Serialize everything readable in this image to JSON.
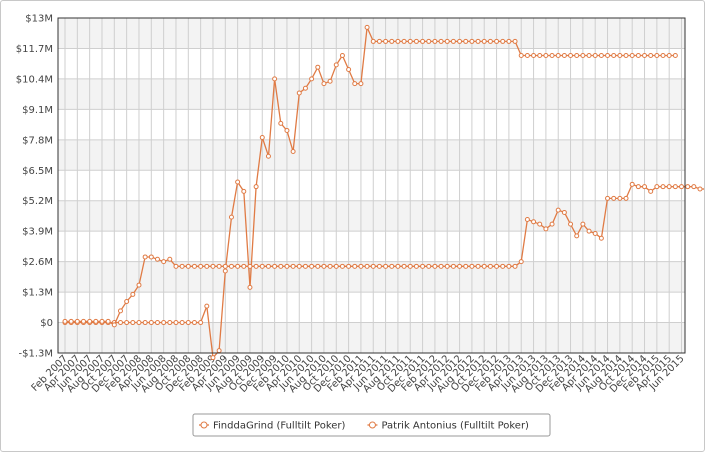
{
  "chart_data": {
    "type": "line",
    "title": "",
    "xlabel": "",
    "ylabel": "",
    "ylim": [
      -1300000,
      13000000
    ],
    "y_ticks": [
      {
        "value": 13000000,
        "label": "$13M"
      },
      {
        "value": 11700000,
        "label": "$11.7M"
      },
      {
        "value": 10400000,
        "label": "$10.4M"
      },
      {
        "value": 9100000,
        "label": "$9.1M"
      },
      {
        "value": 7800000,
        "label": "$7.8M"
      },
      {
        "value": 6500000,
        "label": "$6.5M"
      },
      {
        "value": 5200000,
        "label": "$5.2M"
      },
      {
        "value": 3900000,
        "label": "$3.9M"
      },
      {
        "value": 2600000,
        "label": "$2.6M"
      },
      {
        "value": 1300000,
        "label": "$1.3M"
      },
      {
        "value": 0,
        "label": "$0"
      },
      {
        "value": -1300000,
        "label": "-$1.3M"
      }
    ],
    "x_start_month": "2007-02",
    "x_tick_labels": [
      "Feb 2007",
      "Apr 2007",
      "Jun 2007",
      "Aug 2007",
      "Oct 2007",
      "Dec 2007",
      "Feb 2008",
      "Apr 2008",
      "Jun 2008",
      "Aug 2008",
      "Oct 2008",
      "Dec 2008",
      "Feb 2009",
      "Apr 2009",
      "Jun 2009",
      "Aug 2009",
      "Oct 2009",
      "Dec 2009",
      "Feb 2010",
      "Apr 2010",
      "Jun 2010",
      "Aug 2010",
      "Oct 2010",
      "Dec 2010",
      "Feb 2011",
      "Apr 2011",
      "Jun 2011",
      "Aug 2011",
      "Oct 2011",
      "Dec 2011",
      "Feb 2012",
      "Apr 2012",
      "Jun 2012",
      "Aug 2012",
      "Oct 2012",
      "Dec 2012",
      "Feb 2013",
      "Apr 2013",
      "Jun 2013",
      "Aug 2013",
      "Oct 2013",
      "Dec 2013",
      "Feb 2014",
      "Apr 2014",
      "Jun 2014",
      "Aug 2014",
      "Oct 2014",
      "Dec 2014",
      "Feb 2015",
      "Apr 2015",
      "Jun 2015"
    ],
    "grid": true,
    "legend_position": "bottom-center",
    "series": [
      {
        "name": "FinddaGrind (Fulltilt Poker)",
        "color": "#e07b45",
        "values": [
          0,
          0,
          0,
          0,
          0,
          0,
          0,
          0,
          0,
          0,
          0,
          0,
          0,
          0,
          0,
          0,
          0,
          0,
          0,
          0,
          0,
          0,
          0,
          700000,
          -1500000,
          -1200000,
          2200000,
          4500000,
          6000000,
          5600000,
          1500000,
          5800000,
          7900000,
          7100000,
          10400000,
          8500000,
          8200000,
          7300000,
          9800000,
          10000000,
          10400000,
          10900000,
          10200000,
          10300000,
          11000000,
          11400000,
          10800000,
          10200000,
          10200000,
          12600000,
          12000000,
          12000000,
          12000000,
          12000000,
          12000000,
          12000000,
          12000000,
          12000000,
          12000000,
          12000000,
          12000000,
          12000000,
          12000000,
          12000000,
          12000000,
          12000000,
          12000000,
          12000000,
          12000000,
          12000000,
          12000000,
          12000000,
          12000000,
          12000000,
          11400000,
          11400000,
          11400000,
          11400000,
          11400000,
          11400000,
          11400000,
          11400000,
          11400000,
          11400000,
          11400000,
          11400000,
          11400000,
          11400000,
          11400000,
          11400000,
          11400000,
          11400000,
          11400000,
          11400000,
          11400000,
          11400000,
          11400000,
          11400000,
          11400000,
          11400000
        ]
      },
      {
        "name": "Patrik Antonius (Fulltilt Poker)",
        "color": "#e07b45",
        "values": [
          50000,
          50000,
          50000,
          50000,
          50000,
          50000,
          50000,
          50000,
          -100000,
          500000,
          900000,
          1200000,
          1600000,
          2800000,
          2800000,
          2700000,
          2600000,
          2700000,
          2400000,
          2400000,
          2400000,
          2400000,
          2400000,
          2400000,
          2400000,
          2400000,
          2400000,
          2400000,
          2400000,
          2400000,
          2400000,
          2400000,
          2400000,
          2400000,
          2400000,
          2400000,
          2400000,
          2400000,
          2400000,
          2400000,
          2400000,
          2400000,
          2400000,
          2400000,
          2400000,
          2400000,
          2400000,
          2400000,
          2400000,
          2400000,
          2400000,
          2400000,
          2400000,
          2400000,
          2400000,
          2400000,
          2400000,
          2400000,
          2400000,
          2400000,
          2400000,
          2400000,
          2400000,
          2400000,
          2400000,
          2400000,
          2400000,
          2400000,
          2400000,
          2400000,
          2400000,
          2400000,
          2400000,
          2400000,
          2600000,
          4400000,
          4300000,
          4200000,
          4000000,
          4200000,
          4800000,
          4700000,
          4200000,
          3700000,
          4200000,
          3900000,
          3800000,
          3600000,
          5300000,
          5300000,
          5300000,
          5300000,
          5900000,
          5800000,
          5800000,
          5600000,
          5800000,
          5800000,
          5800000,
          5800000,
          5800000,
          5800000,
          5800000,
          5700000,
          5700000
        ]
      }
    ]
  }
}
